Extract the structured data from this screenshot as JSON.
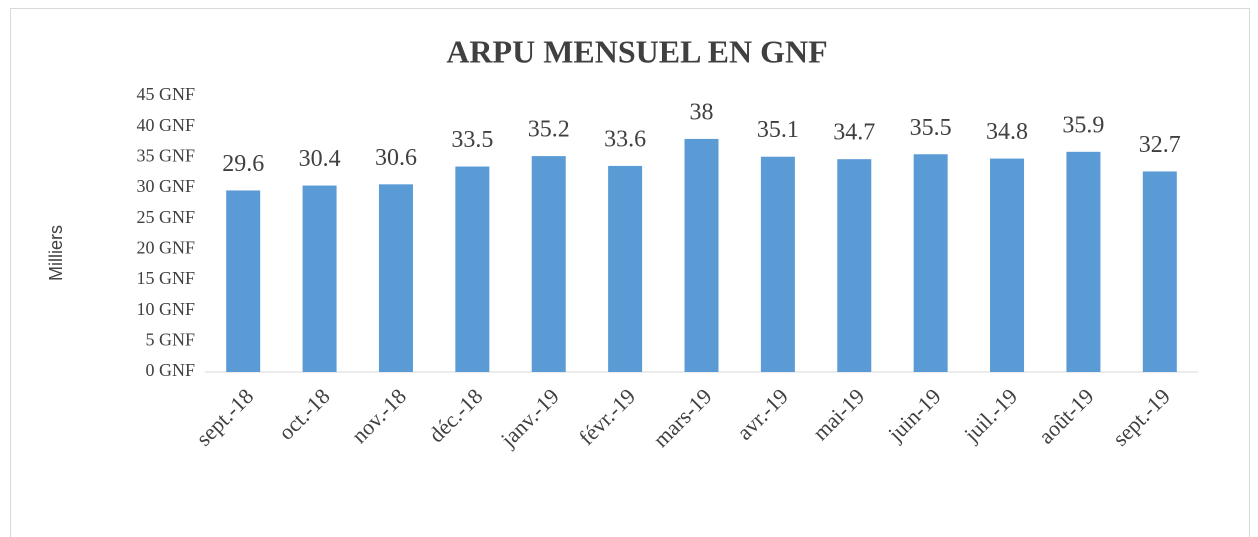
{
  "chart_data": {
    "type": "bar",
    "title": "ARPU MENSUEL EN GNF",
    "y_label": "Milliers",
    "categories": [
      "sept.-18",
      "oct.-18",
      "nov.-18",
      "déc.-18",
      "janv.-19",
      "févr.-19",
      "mars-19",
      "avr.-19",
      "mai-19",
      "juin-19",
      "juil.-19",
      "août-19",
      "sept.-19"
    ],
    "values": [
      29.6,
      30.4,
      30.6,
      33.5,
      35.2,
      33.6,
      38.0,
      35.1,
      34.7,
      35.5,
      34.8,
      35.9,
      32.7
    ],
    "color": "#5b9bd5",
    "ylim": [
      0,
      45
    ],
    "yticks": [
      {
        "value": 0,
        "label": "0 GNF"
      },
      {
        "value": 5,
        "label": "5 GNF"
      },
      {
        "value": 10,
        "label": "10 GNF"
      },
      {
        "value": 15,
        "label": "15 GNF"
      },
      {
        "value": 20,
        "label": "20 GNF"
      },
      {
        "value": 25,
        "label": "25 GNF"
      },
      {
        "value": 30,
        "label": "30 GNF"
      },
      {
        "value": 35,
        "label": "35 GNF"
      },
      {
        "value": 40,
        "label": "40 GNF"
      },
      {
        "value": 45,
        "label": "45 GNF"
      }
    ],
    "grid": false,
    "data_labels": true
  }
}
